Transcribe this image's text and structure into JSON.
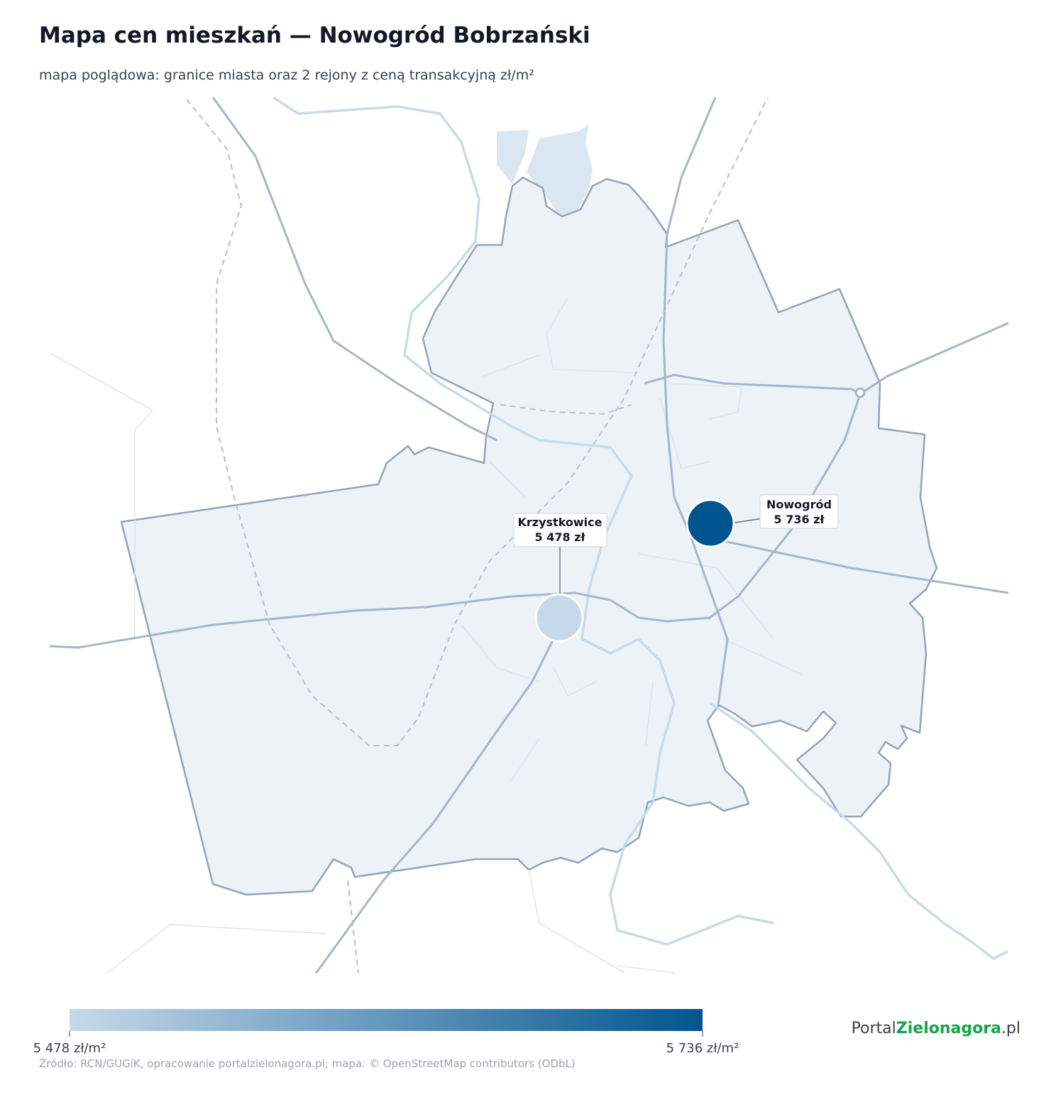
{
  "header": {
    "title": "Mapa cen mieszkań — Nowogród Bobrzański",
    "subtitle": "mapa poglądowa: granice miasta oraz 2 rejony z ceną transakcyjną zł/m²"
  },
  "markers": [
    {
      "name": "Krzystkowice",
      "value": 5478,
      "value_label": "5 478 zł"
    },
    {
      "name": "Nowogród",
      "value": 5736,
      "value_label": "5 736 zł"
    }
  ],
  "legend": {
    "colors": [
      "#c6d9ea",
      "#00558f"
    ],
    "min": {
      "value": 5478,
      "label": "5 478 zł/m²"
    },
    "max": {
      "value": 5736,
      "label": "5 736 zł/m²"
    }
  },
  "source": "Źródło: RCN/GUGiK, opracowanie portalzielonagora.pl; mapa: © OpenStreetMap contributors (ODbL)",
  "logo": {
    "prefix": "Portal",
    "highlight": "Zielonagora",
    "suffix": ".pl"
  }
}
